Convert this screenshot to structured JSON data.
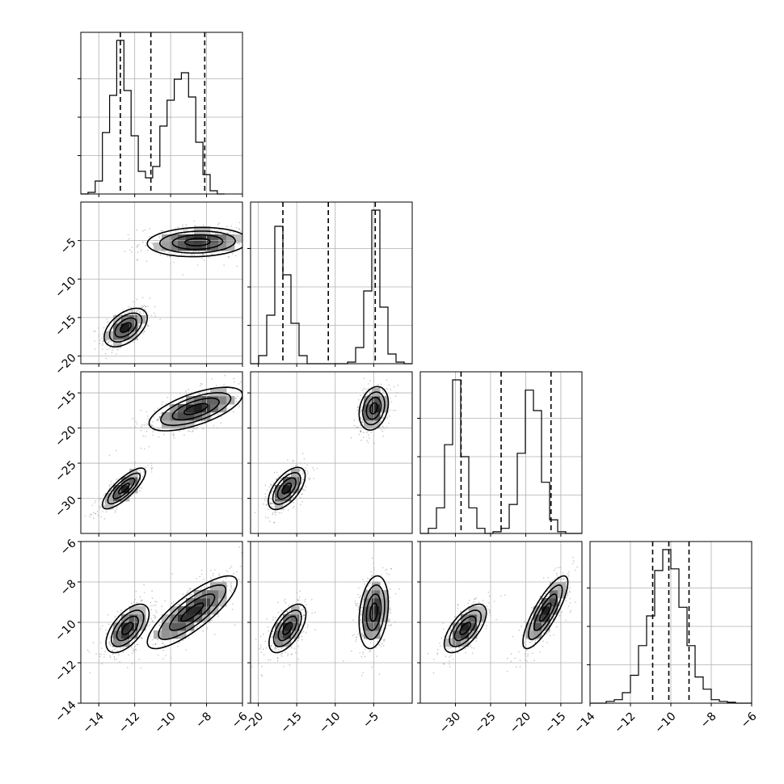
{
  "chart_data": {
    "type": "corner",
    "title": "",
    "parameters": 4,
    "axes": [
      {
        "range": [
          -15,
          -6
        ],
        "ticks": [
          -14,
          -12,
          -10,
          -8,
          -6
        ],
        "tick_labels": [
          "−14",
          "−12",
          "−10",
          "−8",
          "−6"
        ]
      },
      {
        "range": [
          -21,
          0
        ],
        "ticks": [
          -20,
          -15,
          -10,
          -5
        ],
        "tick_labels": [
          "−20",
          "−15",
          "−10",
          "−5"
        ]
      },
      {
        "range": [
          -35,
          -12
        ],
        "ticks": [
          -30,
          -25,
          -20,
          -15
        ],
        "tick_labels": [
          "−30",
          "−25",
          "−20",
          "−15"
        ]
      },
      {
        "range": [
          -14,
          -6
        ],
        "ticks": [
          -14,
          -12,
          -10,
          -8,
          -6
        ],
        "tick_labels": [
          "−14",
          "−12",
          "−10",
          "−8",
          "−6"
        ]
      }
    ],
    "grid": true,
    "histograms": [
      {
        "x_start": -15,
        "bin_width": 0.4,
        "counts": [
          0,
          0.01,
          0.08,
          0.38,
          0.61,
          0.95,
          0.64,
          0.36,
          0.14,
          0.1,
          0.17,
          0.42,
          0.58,
          0.71,
          0.75,
          0.6,
          0.32,
          0.12,
          0.02,
          0
        ],
        "quantiles": [
          -12.8,
          -11.1,
          -8.1
        ]
      },
      {
        "x_start": -21,
        "bin_width": 1.05,
        "counts": [
          0,
          0.05,
          0.3,
          0.85,
          0.55,
          0.25,
          0.05,
          0,
          0,
          0,
          0,
          0,
          0.01,
          0.1,
          0.45,
          0.95,
          0.35,
          0.06,
          0.01,
          0
        ],
        "quantiles": [
          -16.8,
          -10.9,
          -4.8
        ]
      },
      {
        "x_start": -35,
        "bin_width": 1.15,
        "counts": [
          0,
          0.03,
          0.15,
          0.52,
          0.9,
          0.45,
          0.15,
          0.03,
          0,
          0.01,
          0.03,
          0.17,
          0.47,
          0.84,
          0.72,
          0.3,
          0.08,
          0.01,
          0,
          0
        ],
        "quantiles": [
          -29.2,
          -23.5,
          -16.4
        ]
      },
      {
        "x_start": -14,
        "bin_width": 0.4,
        "counts": [
          0,
          0,
          0.01,
          0.02,
          0.06,
          0.16,
          0.33,
          0.5,
          0.76,
          0.88,
          0.77,
          0.55,
          0.33,
          0.15,
          0.08,
          0.02,
          0.01,
          0.005,
          0,
          0
        ],
        "quantiles": [
          -10.9,
          -10.1,
          -9.1
        ]
      }
    ],
    "clusters": [
      {
        "x": 0,
        "y": 1,
        "modes": [
          {
            "mu": [
              -12.5,
              -16.3
            ],
            "sx": 0.6,
            "sy": 1.25,
            "rho": 0.5
          },
          {
            "mu": [
              -8.5,
              -5.2
            ],
            "sx": 1.4,
            "sy": 0.95,
            "rho": 0.1
          }
        ]
      },
      {
        "x": 0,
        "y": 2,
        "modes": [
          {
            "mu": [
              -12.6,
              -28.6
            ],
            "sx": 0.6,
            "sy": 1.45,
            "rho": 0.8
          },
          {
            "mu": [
              -8.6,
              -17.3
            ],
            "sx": 1.3,
            "sy": 1.55,
            "rho": 0.65
          }
        ]
      },
      {
        "x": 1,
        "y": 2,
        "modes": [
          {
            "mu": [
              -16.3,
              -28.6
            ],
            "sx": 1.2,
            "sy": 1.5,
            "rho": 0.6
          },
          {
            "mu": [
              -5.0,
              -17.2
            ],
            "sx": 0.95,
            "sy": 1.55,
            "rho": 0.25
          }
        ]
      },
      {
        "x": 0,
        "y": 3,
        "modes": [
          {
            "mu": [
              -12.4,
              -10.3
            ],
            "sx": 0.6,
            "sy": 0.6,
            "rho": 0.6
          },
          {
            "mu": [
              -8.8,
              -9.5
            ],
            "sx": 1.25,
            "sy": 0.9,
            "rho": 0.82
          }
        ]
      },
      {
        "x": 1,
        "y": 3,
        "modes": [
          {
            "mu": [
              -16.2,
              -10.3
            ],
            "sx": 1.2,
            "sy": 0.6,
            "rho": 0.6
          },
          {
            "mu": [
              -5.0,
              -9.5
            ],
            "sx": 0.95,
            "sy": 0.9,
            "rho": 0.25
          }
        ]
      },
      {
        "x": 2,
        "y": 3,
        "modes": [
          {
            "mu": [
              -28.6,
              -10.3
            ],
            "sx": 1.5,
            "sy": 0.6,
            "rho": 0.65
          },
          {
            "mu": [
              -17.2,
              -9.5
            ],
            "sx": 1.6,
            "sy": 0.9,
            "rho": 0.82
          }
        ]
      }
    ]
  }
}
